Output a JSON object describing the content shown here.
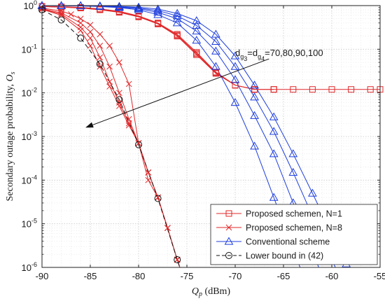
{
  "chart_data": {
    "type": "line",
    "x_scale": "linear",
    "y_scale": "log",
    "xlim": [
      -90,
      -55
    ],
    "ylim": [
      1e-06,
      1
    ],
    "x_ticks": [
      -90,
      -85,
      -80,
      -75,
      -70,
      -65,
      -60,
      -55
    ],
    "x_tick_labels": [
      "-90",
      "-85",
      "-80",
      "-75",
      "-70",
      "-65",
      "-60",
      "-55"
    ],
    "y_ticks": [
      1e-06,
      1e-05,
      0.0001,
      0.001,
      0.01,
      0.1,
      1
    ],
    "y_tick_labels": [
      {
        "base": "10",
        "exp": "-6"
      },
      {
        "base": "10",
        "exp": "-5"
      },
      {
        "base": "10",
        "exp": "-4"
      },
      {
        "base": "10",
        "exp": "-3"
      },
      {
        "base": "10",
        "exp": "-2"
      },
      {
        "base": "10",
        "exp": "-1"
      },
      {
        "base": "10",
        "exp": "0"
      }
    ],
    "xlabel": {
      "var": "Q",
      "sub": "p",
      "unit": " (dBm)"
    },
    "ylabel": {
      "text": "Secondary outage probability, ",
      "var": "O",
      "sub": "s"
    },
    "grid": true,
    "legend_position": "bottom-right",
    "legend": [
      {
        "label": "Proposed schemen, N=1",
        "color": "#e0282a",
        "marker": "square",
        "dash": "solid"
      },
      {
        "label": "Proposed schemen, N=8",
        "color": "#e0282a",
        "marker": "x",
        "dash": "solid"
      },
      {
        "label": "Conventional scheme",
        "color": "#1f3fdd",
        "marker": "triangle",
        "dash": "solid"
      },
      {
        "label": "Lower bound in (42)",
        "color": "#111111",
        "marker": "circle",
        "dash": "dashed"
      }
    ],
    "annotation": {
      "text_prefix": "d",
      "sub1": "g",
      "subsub1": "3",
      "mid": "=d",
      "sub2": "g",
      "subsub2": "4",
      "text_suffix": "=70,80,90,100",
      "arrow_from": {
        "x": -66.5,
        "y": 0.06
      },
      "arrow_to": {
        "x": -85.5,
        "y": 0.0016
      }
    },
    "series": [
      {
        "group": "N=1",
        "color": "#e0282a",
        "marker": "square",
        "dash": "solid",
        "x": [
          -90,
          -88,
          -86,
          -84,
          -82,
          -80,
          -78,
          -76,
          -74,
          -72,
          -70,
          -68,
          -66,
          -64,
          -62,
          -60,
          -58,
          -56,
          -55
        ],
        "y": [
          0.95,
          0.92,
          0.88,
          0.8,
          0.7,
          0.55,
          0.38,
          0.2,
          0.075,
          0.028,
          0.015,
          0.012,
          0.012,
          0.012,
          0.012,
          0.012,
          0.012,
          0.012,
          0.012
        ]
      },
      {
        "group": "N=1",
        "color": "#e0282a",
        "marker": "square",
        "dash": "solid",
        "x": [
          -90,
          -88,
          -86,
          -84,
          -82,
          -80,
          -78,
          -76,
          -74,
          -72,
          -70,
          -68,
          -66
        ],
        "y": [
          0.95,
          0.93,
          0.9,
          0.82,
          0.72,
          0.56,
          0.38,
          0.2,
          0.075,
          0.028,
          0.015,
          0.012,
          0.012
        ]
      },
      {
        "group": "N=1",
        "color": "#e0282a",
        "marker": "square",
        "dash": "solid",
        "x": [
          -90,
          -88,
          -86,
          -84,
          -82,
          -80,
          -78,
          -76,
          -74,
          -72,
          -70,
          -68
        ],
        "y": [
          0.96,
          0.93,
          0.9,
          0.83,
          0.73,
          0.57,
          0.39,
          0.21,
          0.08,
          0.029,
          0.015,
          0.012
        ]
      },
      {
        "group": "N=1",
        "color": "#e0282a",
        "marker": "square",
        "dash": "solid",
        "x": [
          -90,
          -88,
          -86,
          -84,
          -82,
          -80,
          -78,
          -76,
          -74,
          -72,
          -70,
          -68
        ],
        "y": [
          0.96,
          0.94,
          0.91,
          0.84,
          0.74,
          0.58,
          0.4,
          0.22,
          0.085,
          0.03,
          0.015,
          0.012
        ]
      },
      {
        "group": "N=8",
        "color": "#e0282a",
        "marker": "x",
        "dash": "solid",
        "x": [
          -90,
          -88,
          -87,
          -86,
          -85,
          -84,
          -83,
          -82,
          -81,
          -80,
          -79,
          -78,
          -77,
          -76,
          -75.5
        ],
        "y": [
          0.88,
          0.75,
          0.63,
          0.5,
          0.36,
          0.22,
          0.12,
          0.05,
          0.016,
          0.0007,
          0.0001,
          4e-05,
          8e-06,
          1.5e-06,
          7e-07
        ]
      },
      {
        "group": "N=8",
        "color": "#e0282a",
        "marker": "x",
        "dash": "solid",
        "x": [
          -90,
          -88,
          -86,
          -85,
          -84,
          -83,
          -82,
          -81,
          -80,
          -79,
          -78,
          -77,
          -76,
          -75.5
        ],
        "y": [
          0.85,
          0.68,
          0.4,
          0.25,
          0.12,
          0.04,
          0.01,
          0.0025,
          0.0007,
          0.00015,
          4e-05,
          8e-06,
          1.5e-06,
          7e-07
        ]
      },
      {
        "group": "N=8",
        "color": "#e0282a",
        "marker": "x",
        "dash": "solid",
        "x": [
          -90,
          -88,
          -86,
          -85,
          -84,
          -83,
          -82,
          -81,
          -80,
          -79,
          -78,
          -77,
          -76,
          -75.5
        ],
        "y": [
          0.83,
          0.64,
          0.32,
          0.18,
          0.065,
          0.018,
          0.006,
          0.002,
          0.0007,
          0.00015,
          4e-05,
          8e-06,
          1.5e-06,
          7e-07
        ]
      },
      {
        "group": "N=8",
        "color": "#e0282a",
        "marker": "x",
        "dash": "solid",
        "x": [
          -90,
          -88,
          -86,
          -85,
          -84,
          -83,
          -82,
          -81,
          -80,
          -79,
          -78,
          -77,
          -76,
          -75.5
        ],
        "y": [
          0.82,
          0.6,
          0.27,
          0.12,
          0.04,
          0.014,
          0.005,
          0.0018,
          0.0007,
          0.00015,
          4e-05,
          8e-06,
          1.5e-06,
          7e-07
        ]
      },
      {
        "group": "Conventional",
        "color": "#1f3fdd",
        "marker": "triangle",
        "dash": "solid",
        "x": [
          -90,
          -88,
          -86,
          -84,
          -82,
          -80,
          -78,
          -76,
          -74,
          -72,
          -70,
          -68,
          -66,
          -64,
          -63
        ],
        "y": [
          1,
          0.99,
          0.98,
          0.95,
          0.9,
          0.8,
          0.62,
          0.4,
          0.16,
          0.04,
          0.006,
          0.0006,
          4e-05,
          2.5e-06,
          7e-07
        ]
      },
      {
        "group": "Conventional",
        "color": "#1f3fdd",
        "marker": "triangle",
        "dash": "solid",
        "x": [
          -90,
          -88,
          -86,
          -84,
          -82,
          -80,
          -78,
          -76,
          -74,
          -72,
          -70,
          -68,
          -66,
          -64,
          -62,
          -61.2
        ],
        "y": [
          1,
          0.99,
          0.985,
          0.96,
          0.92,
          0.85,
          0.7,
          0.5,
          0.26,
          0.09,
          0.02,
          0.003,
          0.0004,
          3e-05,
          2.5e-06,
          8e-07
        ]
      },
      {
        "group": "Conventional",
        "color": "#1f3fdd",
        "marker": "triangle",
        "dash": "solid",
        "x": [
          -90,
          -88,
          -86,
          -84,
          -82,
          -80,
          -78,
          -76,
          -74,
          -72,
          -70,
          -68,
          -66,
          -64,
          -62,
          -60,
          -59.3
        ],
        "y": [
          1,
          1,
          0.99,
          0.97,
          0.94,
          0.88,
          0.77,
          0.58,
          0.35,
          0.15,
          0.04,
          0.008,
          0.0013,
          0.00015,
          1.5e-05,
          1.5e-06,
          7e-07
        ]
      },
      {
        "group": "Conventional",
        "color": "#1f3fdd",
        "marker": "triangle",
        "dash": "solid",
        "x": [
          -90,
          -88,
          -86,
          -84,
          -82,
          -80,
          -78,
          -76,
          -74,
          -72,
          -70,
          -68,
          -66,
          -64,
          -62,
          -60,
          -58.5
        ],
        "y": [
          1,
          1,
          0.995,
          0.98,
          0.96,
          0.92,
          0.83,
          0.66,
          0.45,
          0.22,
          0.07,
          0.015,
          0.0028,
          0.0004,
          5e-05,
          6e-06,
          1.2e-06
        ]
      },
      {
        "group": "Lower bound",
        "color": "#111111",
        "marker": "circle",
        "dash": "dashed",
        "x": [
          -90,
          -88,
          -86,
          -84,
          -82,
          -80,
          -78,
          -76,
          -75.5
        ],
        "y": [
          0.8,
          0.47,
          0.18,
          0.046,
          0.007,
          0.00065,
          3.8e-05,
          1.5e-06,
          7e-07
        ],
        "marker_x": [
          -90,
          -88,
          -86,
          -84,
          -82,
          -80,
          -78,
          -76
        ],
        "marker_y": [
          0.8,
          0.47,
          0.18,
          0.046,
          0.007,
          0.00065,
          3.8e-05,
          1.5e-06
        ]
      }
    ]
  }
}
